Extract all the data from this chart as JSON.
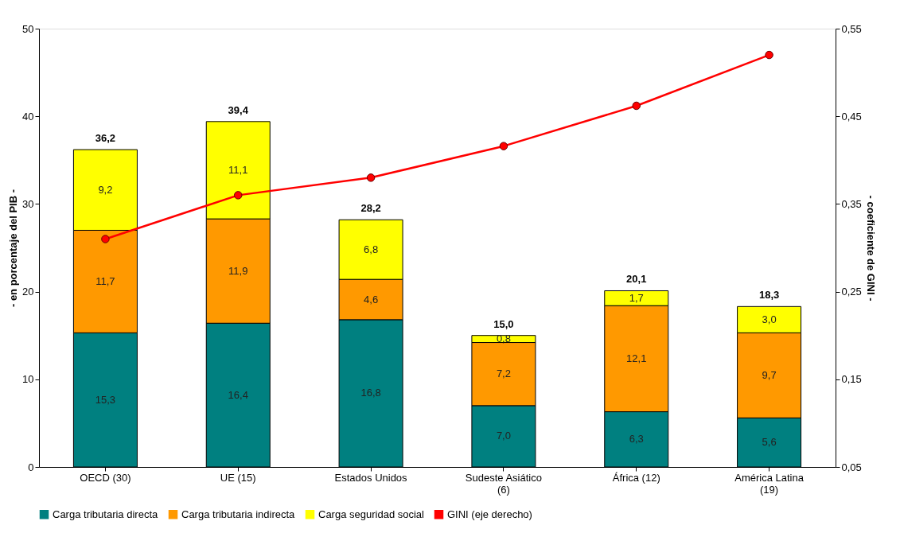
{
  "chart_data": {
    "type": "bar",
    "stacked": true,
    "categories": [
      "OECD (30)",
      "UE (15)",
      "Estados Unidos",
      "Sudeste Asiático\n(6)",
      "África (12)",
      "América Latina\n(19)"
    ],
    "ylabel": "- en porcentaje del PIB -",
    "y2label": "- coeficiente de GINI -",
    "ylim": [
      0,
      50
    ],
    "yticks": [
      0,
      10,
      20,
      30,
      40,
      50
    ],
    "y2lim": [
      0.05,
      0.55
    ],
    "y2ticks": [
      {
        "value": 0.05,
        "label": "0,05"
      },
      {
        "value": 0.15,
        "label": "0,15"
      },
      {
        "value": 0.25,
        "label": "0,25"
      },
      {
        "value": 0.35,
        "label": "0,35"
      },
      {
        "value": 0.45,
        "label": "0,45"
      },
      {
        "value": 0.55,
        "label": "0,55"
      }
    ],
    "series": [
      {
        "name": "Carga tributaria directa",
        "color": "#008080",
        "values": [
          15.3,
          16.4,
          16.8,
          7.0,
          6.3,
          5.6
        ],
        "value_labels": [
          "15,3",
          "16,4",
          "16,8",
          "7,0",
          "6,3",
          "5,6"
        ]
      },
      {
        "name": "Carga tributaria indirecta",
        "color": "#ff9900",
        "values": [
          11.7,
          11.9,
          4.6,
          7.2,
          12.1,
          9.7
        ],
        "value_labels": [
          "11,7",
          "11,9",
          "4,6",
          "7,2",
          "12,1",
          "9,7"
        ]
      },
      {
        "name": "Carga seguridad social",
        "color": "#ffff00",
        "values": [
          9.2,
          11.1,
          6.8,
          0.8,
          1.7,
          3.0
        ],
        "value_labels": [
          "9,2",
          "11,1",
          "6,8",
          "0,8",
          "1,7",
          "3,0"
        ]
      },
      {
        "name": "GINI (eje derecho)",
        "color": "#ff0000",
        "type": "line",
        "axis": "y2",
        "marker": "circle",
        "line_style": "solid",
        "values": [
          0.31,
          0.36,
          0.38,
          0.416,
          0.462,
          0.52
        ]
      }
    ],
    "totals": [
      "36,2",
      "39,4",
      "28,2",
      "15,0",
      "20,1",
      "18,3"
    ],
    "legend": "bottom",
    "grid": false
  }
}
